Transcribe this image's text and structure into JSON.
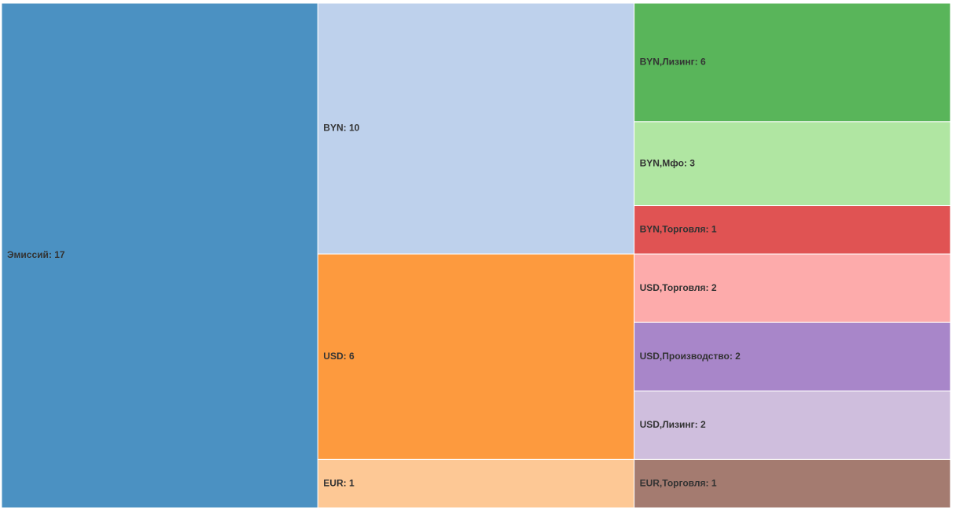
{
  "chart_data": {
    "type": "icicle",
    "root": {
      "label": "Эмиссий: 17",
      "value": 17,
      "color": "#4b91c2",
      "children": [
        {
          "label": "BYN: 10",
          "value": 10,
          "color": "#bed1ec",
          "children": [
            {
              "label": "BYN,Лизинг: 6",
              "value": 6,
              "color": "#59b55a"
            },
            {
              "label": "BYN,Мфо: 3",
              "value": 3,
              "color": "#b0e6a2"
            },
            {
              "label": "BYN,Торговля: 1",
              "value": 1,
              "color": "#e05353"
            }
          ]
        },
        {
          "label": "USD: 6",
          "value": 6,
          "color": "#fd9a3e",
          "children": [
            {
              "label": "USD,Торговля: 2",
              "value": 2,
              "color": "#fdabab"
            },
            {
              "label": "USD,Производство: 2",
              "value": 2,
              "color": "#a886c9"
            },
            {
              "label": "USD,Лизинг: 2",
              "value": 2,
              "color": "#cfbedd"
            }
          ]
        },
        {
          "label": "EUR: 1",
          "value": 1,
          "color": "#fdc895",
          "children": [
            {
              "label": "EUR,Торговля: 1",
              "value": 1,
              "color": "#a47b70"
            }
          ]
        }
      ]
    }
  }
}
